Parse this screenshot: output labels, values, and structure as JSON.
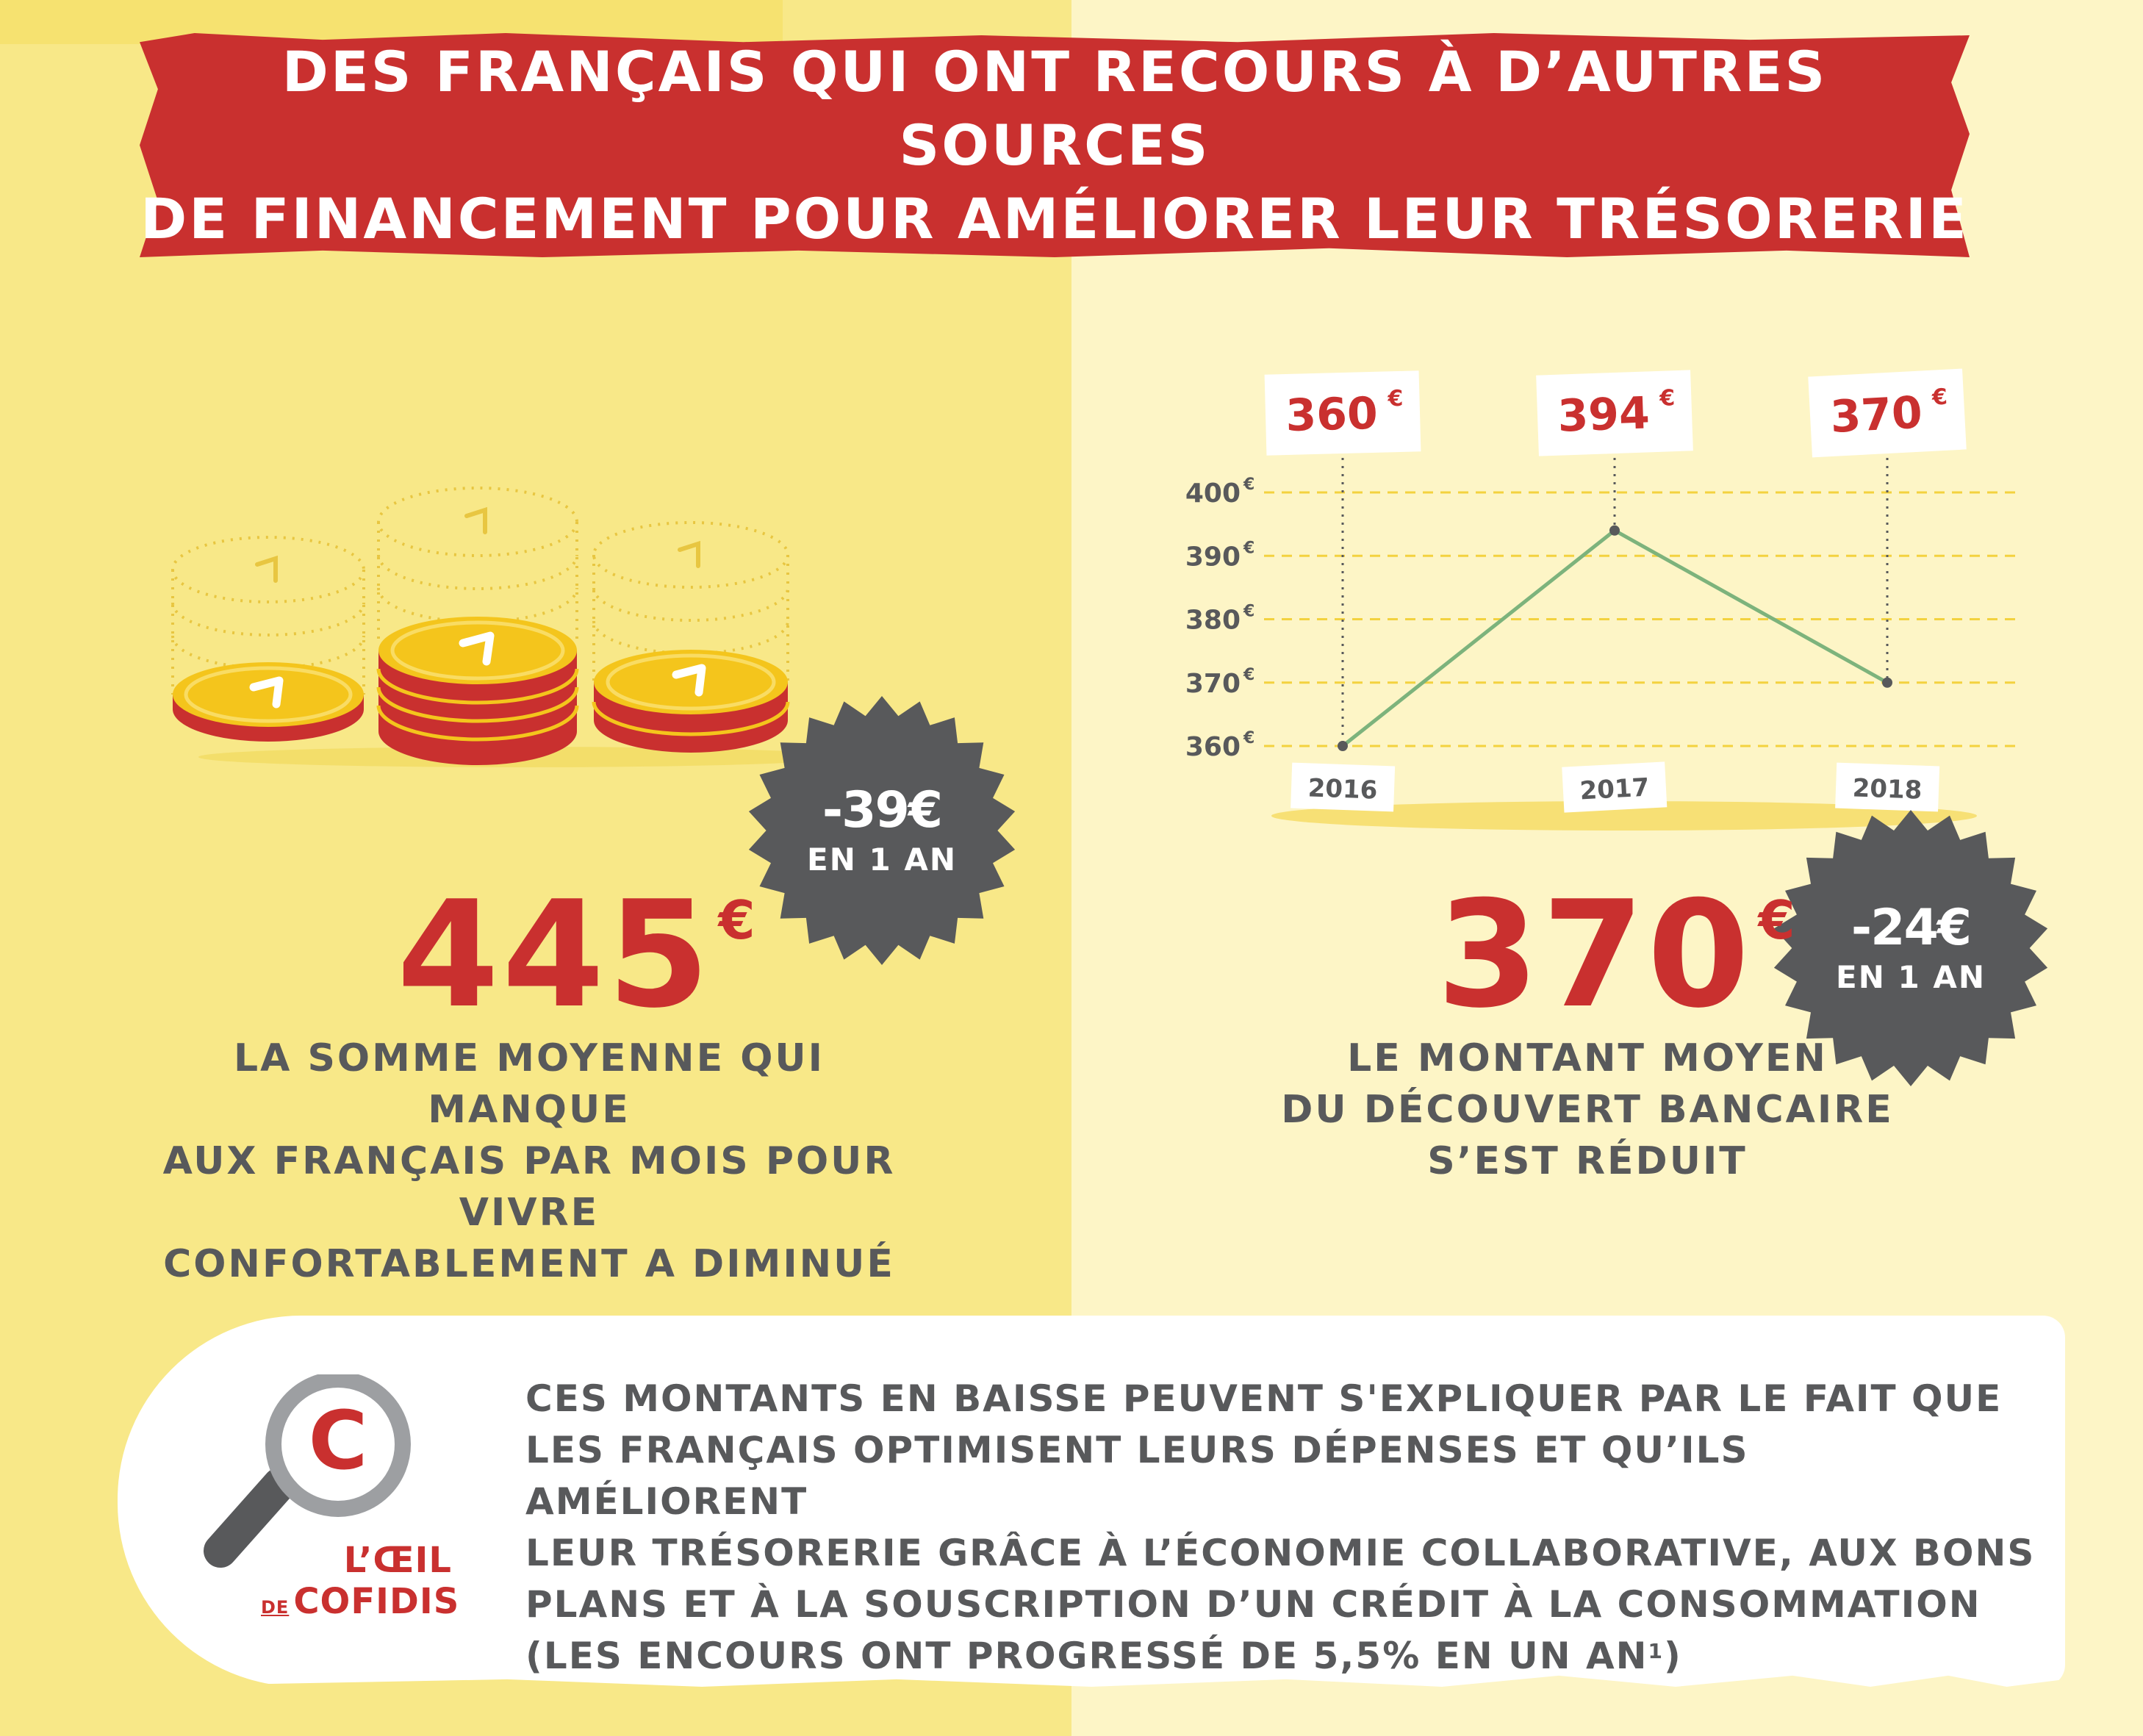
{
  "title": {
    "line1": "DES FRANÇAIS QUI ONT RECOURS À D’AUTRES SOURCES",
    "line2": "DE FINANCEMENT POUR AMÉLIORER LEUR TRÉSORERIE"
  },
  "left_stat": {
    "value": "445",
    "unit": "€",
    "badge_value": "-39€",
    "badge_caption": "EN 1 AN",
    "description": [
      "LA SOMME MOYENNE QUI MANQUE",
      "AUX FRANÇAIS PAR MOIS POUR VIVRE",
      "CONFORTABLEMENT A DIMINUÉ"
    ]
  },
  "right_stat": {
    "value": "370",
    "unit": "€",
    "badge_value": "-24€",
    "badge_caption": "EN 1 AN",
    "description": [
      "LE MONTANT MOYEN",
      "DU DÉCOUVERT BANCAIRE",
      "S’EST RÉDUIT"
    ]
  },
  "chart_data": {
    "type": "line",
    "x": [
      "2016",
      "2017",
      "2018"
    ],
    "series": [
      {
        "values": [
          360,
          394,
          370
        ],
        "color": "#7db37c"
      }
    ],
    "value_labels": [
      "360",
      "394",
      "370"
    ],
    "value_unit": "€",
    "yticks": [
      360,
      370,
      380,
      390,
      400
    ],
    "ytick_labels": [
      "360",
      "370",
      "380",
      "390",
      "400"
    ],
    "ytick_unit": "€",
    "ylim": [
      360,
      400
    ],
    "grid": true,
    "grid_color": "#f3d23f",
    "label_color": "#c9302f"
  },
  "panel": {
    "lines": [
      "CES MONTANTS EN BAISSE PEUVENT S'EXPLIQUER PAR LE FAIT QUE",
      "LES FRANÇAIS OPTIMISENT LEURS DÉPENSES ET QU’ILS AMÉLIORENT",
      "LEUR TRÉSORERIE GRÂCE À L’ÉCONOMIE COLLABORATIVE, AUX BONS",
      "PLANS ET À LA SOUSCRIPTION D’UN CRÉDIT À LA CONSOMMATION",
      "(LES ENCOURS ONT PROGRESSÉ DE 5,5% EN UN AN"
    ],
    "footnote": "1"
  },
  "brand": {
    "line1": "L’ŒIL",
    "de": "DE",
    "line2": "COFIDIS",
    "logo_letter": "C"
  },
  "icons": {
    "coins": "coin-stack-icon",
    "magnifier": "magnifier-icon"
  },
  "colors": {
    "red": "#c9302f",
    "dark_gray": "#58595b",
    "coin_gold": "#f4c51c",
    "left_bg": "#f8e888",
    "right_bg": "#fdf5c6"
  }
}
